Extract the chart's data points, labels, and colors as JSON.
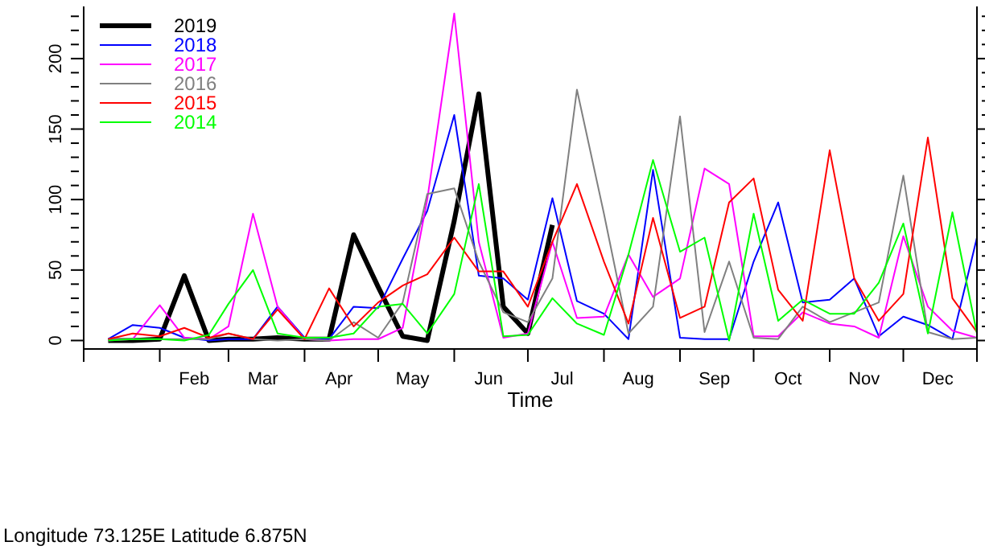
{
  "chart_data": {
    "type": "line",
    "xlabel": "Time",
    "annotations": [
      "Longitude 73.125E Latitude 6.875N"
    ],
    "x": [
      "--01-11",
      "--01-21",
      "--02-01",
      "--02-11",
      "--02-21",
      "--03-01",
      "--03-11",
      "--03-21",
      "--04-01",
      "--04-11",
      "--04-21",
      "--05-01",
      "--05-11",
      "--05-21",
      "--06-01",
      "--06-11",
      "--06-21",
      "--07-01",
      "--07-11",
      "--07-21",
      "--08-01",
      "--08-11",
      "--08-21",
      "--09-01",
      "--09-11",
      "--09-21",
      "--10-01",
      "--10-11",
      "--10-21",
      "--11-01",
      "--11-11",
      "--11-21",
      "--12-01",
      "--12-11",
      "--12-21",
      "--12-31"
    ],
    "xlim": [
      "--01-01",
      "--12-31"
    ],
    "xticks": [
      {
        "value": "--01-01",
        "label": null
      },
      {
        "value": "--02-01",
        "label": null
      },
      {
        "value": "--02-15",
        "label": "Feb"
      },
      {
        "value": "--03-01",
        "label": null
      },
      {
        "value": "--03-15",
        "label": "Mar"
      },
      {
        "value": "--04-01",
        "label": null
      },
      {
        "value": "--04-15",
        "label": "Apr"
      },
      {
        "value": "--05-01",
        "label": null
      },
      {
        "value": "--05-15",
        "label": "May"
      },
      {
        "value": "--06-01",
        "label": null
      },
      {
        "value": "--06-15",
        "label": "Jun"
      },
      {
        "value": "--07-01",
        "label": null
      },
      {
        "value": "--07-15",
        "label": "Jul"
      },
      {
        "value": "--08-01",
        "label": null
      },
      {
        "value": "--08-15",
        "label": "Aug"
      },
      {
        "value": "--09-01",
        "label": null
      },
      {
        "value": "--09-15",
        "label": "Sep"
      },
      {
        "value": "--10-01",
        "label": null
      },
      {
        "value": "--10-15",
        "label": "Oct"
      },
      {
        "value": "--11-01",
        "label": null
      },
      {
        "value": "--11-15",
        "label": "Nov"
      },
      {
        "value": "--12-01",
        "label": null
      },
      {
        "value": "--12-15",
        "label": "Dec"
      },
      {
        "value": "--12-31",
        "label": null
      }
    ],
    "ylim": [
      -6,
      237
    ],
    "yticks": [
      0,
      {
        "value": 10,
        "label": null
      },
      {
        "value": 20,
        "label": null
      },
      {
        "value": 30,
        "label": null
      },
      {
        "value": 40,
        "label": null
      },
      50,
      {
        "value": 60,
        "label": null
      },
      {
        "value": 70,
        "label": null
      },
      {
        "value": 80,
        "label": null
      },
      {
        "value": 90,
        "label": null
      },
      100,
      {
        "value": 110,
        "label": null
      },
      {
        "value": 120,
        "label": null
      },
      {
        "value": 130,
        "label": null
      },
      {
        "value": 140,
        "label": null
      },
      150,
      {
        "value": 160,
        "label": null
      },
      {
        "value": 170,
        "label": null
      },
      {
        "value": 180,
        "label": null
      },
      {
        "value": 190,
        "label": null
      },
      200,
      {
        "value": 210,
        "label": null
      },
      {
        "value": 220,
        "label": null
      },
      {
        "value": 230,
        "label": null
      }
    ],
    "legend": "top left",
    "marker": "none",
    "line_style": "solid",
    "series": [
      {
        "name": "2019",
        "color": "#000000",
        "values": [
          0,
          0,
          1,
          46,
          0,
          1,
          1,
          2,
          1,
          1,
          75,
          38,
          3,
          0,
          85,
          175,
          24,
          5,
          82,
          null,
          null,
          null,
          null,
          null,
          null,
          null,
          null,
          null,
          null,
          null,
          null,
          null,
          null,
          null,
          null,
          null
        ]
      },
      {
        "name": "2018",
        "color": "#0000ff",
        "values": [
          1,
          11,
          9,
          2,
          0,
          1,
          1,
          24,
          2,
          1,
          24,
          23,
          58,
          92,
          160,
          46,
          44,
          29,
          101,
          28,
          19,
          1,
          121,
          2,
          1,
          1,
          56,
          98,
          27,
          29,
          44,
          3,
          17,
          11,
          1,
          73
        ]
      },
      {
        "name": "2017",
        "color": "#ff00ff",
        "values": [
          0,
          1,
          25,
          2,
          1,
          10,
          90,
          24,
          1,
          0,
          1,
          1,
          9,
          100,
          232,
          70,
          2,
          5,
          70,
          16,
          17,
          61,
          31,
          44,
          122,
          111,
          3,
          3,
          20,
          12,
          10,
          2,
          74,
          24,
          7,
          2
        ]
      },
      {
        "name": "2016",
        "color": "#808080",
        "values": [
          1,
          1,
          1,
          1,
          1,
          5,
          1,
          0,
          1,
          0,
          13,
          2,
          27,
          104,
          108,
          56,
          20,
          13,
          44,
          178,
          90,
          5,
          24,
          159,
          6,
          56,
          2,
          1,
          24,
          13,
          20,
          27,
          117,
          6,
          1,
          2
        ]
      },
      {
        "name": "2015",
        "color": "#ff0000",
        "values": [
          1,
          5,
          3,
          9,
          2,
          5,
          1,
          22,
          1,
          37,
          10,
          27,
          39,
          47,
          73,
          49,
          49,
          24,
          70,
          111,
          56,
          12,
          87,
          16,
          24,
          98,
          115,
          36,
          14,
          135,
          44,
          14,
          33,
          144,
          30,
          6
        ]
      },
      {
        "name": "2014",
        "color": "#00ff00",
        "values": [
          0,
          1,
          1,
          0,
          4,
          26,
          50,
          5,
          2,
          2,
          5,
          24,
          26,
          5,
          33,
          111,
          3,
          4,
          30,
          12,
          4,
          61,
          128,
          63,
          73,
          0,
          90,
          14,
          29,
          19,
          19,
          41,
          83,
          5,
          91,
          5
        ]
      }
    ]
  }
}
